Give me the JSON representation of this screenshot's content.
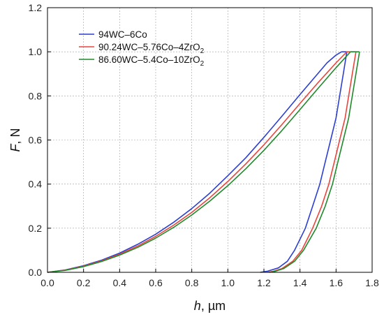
{
  "chart_data": {
    "type": "line",
    "xlabel": {
      "symbol": "h",
      "unit": ", µm"
    },
    "ylabel": {
      "symbol": "F",
      "unit": ", N"
    },
    "xlim": [
      0.0,
      1.8
    ],
    "ylim": [
      0.0,
      1.2
    ],
    "xticks": [
      "0.0",
      "0.2",
      "0.4",
      "0.6",
      "0.8",
      "1.0",
      "1.2",
      "1.4",
      "1.6",
      "1.8"
    ],
    "yticks": [
      "0.0",
      "0.2",
      "0.4",
      "0.6",
      "0.8",
      "1.0",
      "1.2"
    ],
    "grid": true,
    "legend_position": "top-left",
    "series": [
      {
        "name": "94WC–6Co",
        "legend_parts": [
          [
            "94WC–6Co",
            ""
          ]
        ],
        "color": "#2b3fd1",
        "loading": [
          [
            0.0,
            0.0
          ],
          [
            0.1,
            0.011
          ],
          [
            0.2,
            0.03
          ],
          [
            0.3,
            0.055
          ],
          [
            0.4,
            0.087
          ],
          [
            0.5,
            0.127
          ],
          [
            0.6,
            0.173
          ],
          [
            0.7,
            0.227
          ],
          [
            0.8,
            0.289
          ],
          [
            0.9,
            0.359
          ],
          [
            1.0,
            0.438
          ],
          [
            1.1,
            0.52
          ],
          [
            1.2,
            0.612
          ],
          [
            1.3,
            0.708
          ],
          [
            1.4,
            0.806
          ],
          [
            1.5,
            0.902
          ],
          [
            1.55,
            0.95
          ],
          [
            1.6,
            0.985
          ],
          [
            1.63,
            1.0
          ]
        ],
        "hold": [
          [
            1.63,
            1.0
          ],
          [
            1.66,
            1.0
          ]
        ],
        "unloading": [
          [
            1.66,
            1.0
          ],
          [
            1.64,
            0.9
          ],
          [
            1.62,
            0.8
          ],
          [
            1.6,
            0.7
          ],
          [
            1.57,
            0.6
          ],
          [
            1.54,
            0.5
          ],
          [
            1.51,
            0.4
          ],
          [
            1.47,
            0.3
          ],
          [
            1.43,
            0.2
          ],
          [
            1.37,
            0.1
          ],
          [
            1.33,
            0.05
          ],
          [
            1.28,
            0.02
          ],
          [
            1.22,
            0.005
          ],
          [
            1.18,
            0.0
          ]
        ]
      },
      {
        "name": "90.24WC–5.76Co–4ZrO2",
        "legend_parts": [
          [
            "90.24WC–5.76Co–4ZrO",
            ""
          ],
          [
            "2",
            "sub"
          ]
        ],
        "color": "#e8453c",
        "loading": [
          [
            0.0,
            0.0
          ],
          [
            0.1,
            0.01
          ],
          [
            0.2,
            0.028
          ],
          [
            0.3,
            0.052
          ],
          [
            0.4,
            0.082
          ],
          [
            0.5,
            0.119
          ],
          [
            0.6,
            0.163
          ],
          [
            0.7,
            0.214
          ],
          [
            0.8,
            0.272
          ],
          [
            0.9,
            0.338
          ],
          [
            1.0,
            0.412
          ],
          [
            1.1,
            0.492
          ],
          [
            1.2,
            0.578
          ],
          [
            1.3,
            0.67
          ],
          [
            1.4,
            0.766
          ],
          [
            1.5,
            0.86
          ],
          [
            1.6,
            0.95
          ],
          [
            1.66,
            1.0
          ]
        ],
        "hold": [
          [
            1.66,
            1.0
          ],
          [
            1.71,
            1.0
          ]
        ],
        "unloading": [
          [
            1.71,
            1.0
          ],
          [
            1.69,
            0.9
          ],
          [
            1.67,
            0.8
          ],
          [
            1.65,
            0.7
          ],
          [
            1.62,
            0.6
          ],
          [
            1.59,
            0.5
          ],
          [
            1.56,
            0.4
          ],
          [
            1.52,
            0.3
          ],
          [
            1.47,
            0.2
          ],
          [
            1.41,
            0.1
          ],
          [
            1.36,
            0.05
          ],
          [
            1.3,
            0.017
          ],
          [
            1.25,
            0.004
          ],
          [
            1.22,
            0.0
          ]
        ]
      },
      {
        "name": "86.60WC–5.4Co–10ZrO2",
        "legend_parts": [
          [
            "86.60WC–5.4Co–10ZrO",
            ""
          ],
          [
            "2",
            "sub"
          ]
        ],
        "color": "#1f8a2a",
        "loading": [
          [
            0.0,
            0.0
          ],
          [
            0.1,
            0.009
          ],
          [
            0.2,
            0.026
          ],
          [
            0.3,
            0.049
          ],
          [
            0.4,
            0.078
          ],
          [
            0.5,
            0.113
          ],
          [
            0.6,
            0.155
          ],
          [
            0.7,
            0.204
          ],
          [
            0.8,
            0.26
          ],
          [
            0.9,
            0.323
          ],
          [
            1.0,
            0.393
          ],
          [
            1.1,
            0.47
          ],
          [
            1.2,
            0.553
          ],
          [
            1.3,
            0.643
          ],
          [
            1.4,
            0.738
          ],
          [
            1.5,
            0.834
          ],
          [
            1.6,
            0.928
          ],
          [
            1.68,
            1.0
          ]
        ],
        "hold": [
          [
            1.68,
            1.0
          ],
          [
            1.73,
            1.0
          ]
        ],
        "unloading": [
          [
            1.73,
            1.0
          ],
          [
            1.71,
            0.9
          ],
          [
            1.69,
            0.8
          ],
          [
            1.67,
            0.7
          ],
          [
            1.64,
            0.6
          ],
          [
            1.61,
            0.5
          ],
          [
            1.58,
            0.4
          ],
          [
            1.54,
            0.3
          ],
          [
            1.49,
            0.2
          ],
          [
            1.42,
            0.1
          ],
          [
            1.37,
            0.05
          ],
          [
            1.31,
            0.017
          ],
          [
            1.26,
            0.004
          ],
          [
            1.23,
            0.0
          ]
        ]
      }
    ]
  }
}
